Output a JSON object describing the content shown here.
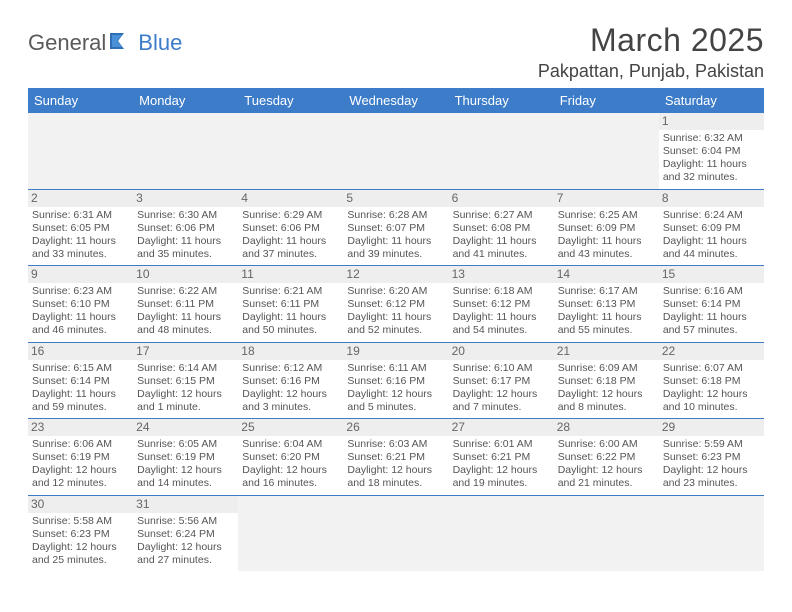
{
  "brand": {
    "part1": "General",
    "part2": "Blue"
  },
  "title": "March 2025",
  "location": "Pakpattan, Punjab, Pakistan",
  "colors": {
    "header_bg": "#3d7cc9",
    "header_text": "#ffffff",
    "border": "#3d7cc9",
    "daynum_bg": "#eeeeee",
    "text": "#555555",
    "title_text": "#444444"
  },
  "weekdays": [
    "Sunday",
    "Monday",
    "Tuesday",
    "Wednesday",
    "Thursday",
    "Friday",
    "Saturday"
  ],
  "weeks": [
    [
      null,
      null,
      null,
      null,
      null,
      null,
      {
        "n": "1",
        "sr": "Sunrise: 6:32 AM",
        "ss": "Sunset: 6:04 PM",
        "dl": "Daylight: 11 hours and 32 minutes."
      }
    ],
    [
      {
        "n": "2",
        "sr": "Sunrise: 6:31 AM",
        "ss": "Sunset: 6:05 PM",
        "dl": "Daylight: 11 hours and 33 minutes."
      },
      {
        "n": "3",
        "sr": "Sunrise: 6:30 AM",
        "ss": "Sunset: 6:06 PM",
        "dl": "Daylight: 11 hours and 35 minutes."
      },
      {
        "n": "4",
        "sr": "Sunrise: 6:29 AM",
        "ss": "Sunset: 6:06 PM",
        "dl": "Daylight: 11 hours and 37 minutes."
      },
      {
        "n": "5",
        "sr": "Sunrise: 6:28 AM",
        "ss": "Sunset: 6:07 PM",
        "dl": "Daylight: 11 hours and 39 minutes."
      },
      {
        "n": "6",
        "sr": "Sunrise: 6:27 AM",
        "ss": "Sunset: 6:08 PM",
        "dl": "Daylight: 11 hours and 41 minutes."
      },
      {
        "n": "7",
        "sr": "Sunrise: 6:25 AM",
        "ss": "Sunset: 6:09 PM",
        "dl": "Daylight: 11 hours and 43 minutes."
      },
      {
        "n": "8",
        "sr": "Sunrise: 6:24 AM",
        "ss": "Sunset: 6:09 PM",
        "dl": "Daylight: 11 hours and 44 minutes."
      }
    ],
    [
      {
        "n": "9",
        "sr": "Sunrise: 6:23 AM",
        "ss": "Sunset: 6:10 PM",
        "dl": "Daylight: 11 hours and 46 minutes."
      },
      {
        "n": "10",
        "sr": "Sunrise: 6:22 AM",
        "ss": "Sunset: 6:11 PM",
        "dl": "Daylight: 11 hours and 48 minutes."
      },
      {
        "n": "11",
        "sr": "Sunrise: 6:21 AM",
        "ss": "Sunset: 6:11 PM",
        "dl": "Daylight: 11 hours and 50 minutes."
      },
      {
        "n": "12",
        "sr": "Sunrise: 6:20 AM",
        "ss": "Sunset: 6:12 PM",
        "dl": "Daylight: 11 hours and 52 minutes."
      },
      {
        "n": "13",
        "sr": "Sunrise: 6:18 AM",
        "ss": "Sunset: 6:12 PM",
        "dl": "Daylight: 11 hours and 54 minutes."
      },
      {
        "n": "14",
        "sr": "Sunrise: 6:17 AM",
        "ss": "Sunset: 6:13 PM",
        "dl": "Daylight: 11 hours and 55 minutes."
      },
      {
        "n": "15",
        "sr": "Sunrise: 6:16 AM",
        "ss": "Sunset: 6:14 PM",
        "dl": "Daylight: 11 hours and 57 minutes."
      }
    ],
    [
      {
        "n": "16",
        "sr": "Sunrise: 6:15 AM",
        "ss": "Sunset: 6:14 PM",
        "dl": "Daylight: 11 hours and 59 minutes."
      },
      {
        "n": "17",
        "sr": "Sunrise: 6:14 AM",
        "ss": "Sunset: 6:15 PM",
        "dl": "Daylight: 12 hours and 1 minute."
      },
      {
        "n": "18",
        "sr": "Sunrise: 6:12 AM",
        "ss": "Sunset: 6:16 PM",
        "dl": "Daylight: 12 hours and 3 minutes."
      },
      {
        "n": "19",
        "sr": "Sunrise: 6:11 AM",
        "ss": "Sunset: 6:16 PM",
        "dl": "Daylight: 12 hours and 5 minutes."
      },
      {
        "n": "20",
        "sr": "Sunrise: 6:10 AM",
        "ss": "Sunset: 6:17 PM",
        "dl": "Daylight: 12 hours and 7 minutes."
      },
      {
        "n": "21",
        "sr": "Sunrise: 6:09 AM",
        "ss": "Sunset: 6:18 PM",
        "dl": "Daylight: 12 hours and 8 minutes."
      },
      {
        "n": "22",
        "sr": "Sunrise: 6:07 AM",
        "ss": "Sunset: 6:18 PM",
        "dl": "Daylight: 12 hours and 10 minutes."
      }
    ],
    [
      {
        "n": "23",
        "sr": "Sunrise: 6:06 AM",
        "ss": "Sunset: 6:19 PM",
        "dl": "Daylight: 12 hours and 12 minutes."
      },
      {
        "n": "24",
        "sr": "Sunrise: 6:05 AM",
        "ss": "Sunset: 6:19 PM",
        "dl": "Daylight: 12 hours and 14 minutes."
      },
      {
        "n": "25",
        "sr": "Sunrise: 6:04 AM",
        "ss": "Sunset: 6:20 PM",
        "dl": "Daylight: 12 hours and 16 minutes."
      },
      {
        "n": "26",
        "sr": "Sunrise: 6:03 AM",
        "ss": "Sunset: 6:21 PM",
        "dl": "Daylight: 12 hours and 18 minutes."
      },
      {
        "n": "27",
        "sr": "Sunrise: 6:01 AM",
        "ss": "Sunset: 6:21 PM",
        "dl": "Daylight: 12 hours and 19 minutes."
      },
      {
        "n": "28",
        "sr": "Sunrise: 6:00 AM",
        "ss": "Sunset: 6:22 PM",
        "dl": "Daylight: 12 hours and 21 minutes."
      },
      {
        "n": "29",
        "sr": "Sunrise: 5:59 AM",
        "ss": "Sunset: 6:23 PM",
        "dl": "Daylight: 12 hours and 23 minutes."
      }
    ],
    [
      {
        "n": "30",
        "sr": "Sunrise: 5:58 AM",
        "ss": "Sunset: 6:23 PM",
        "dl": "Daylight: 12 hours and 25 minutes."
      },
      {
        "n": "31",
        "sr": "Sunrise: 5:56 AM",
        "ss": "Sunset: 6:24 PM",
        "dl": "Daylight: 12 hours and 27 minutes."
      },
      null,
      null,
      null,
      null,
      null
    ]
  ]
}
